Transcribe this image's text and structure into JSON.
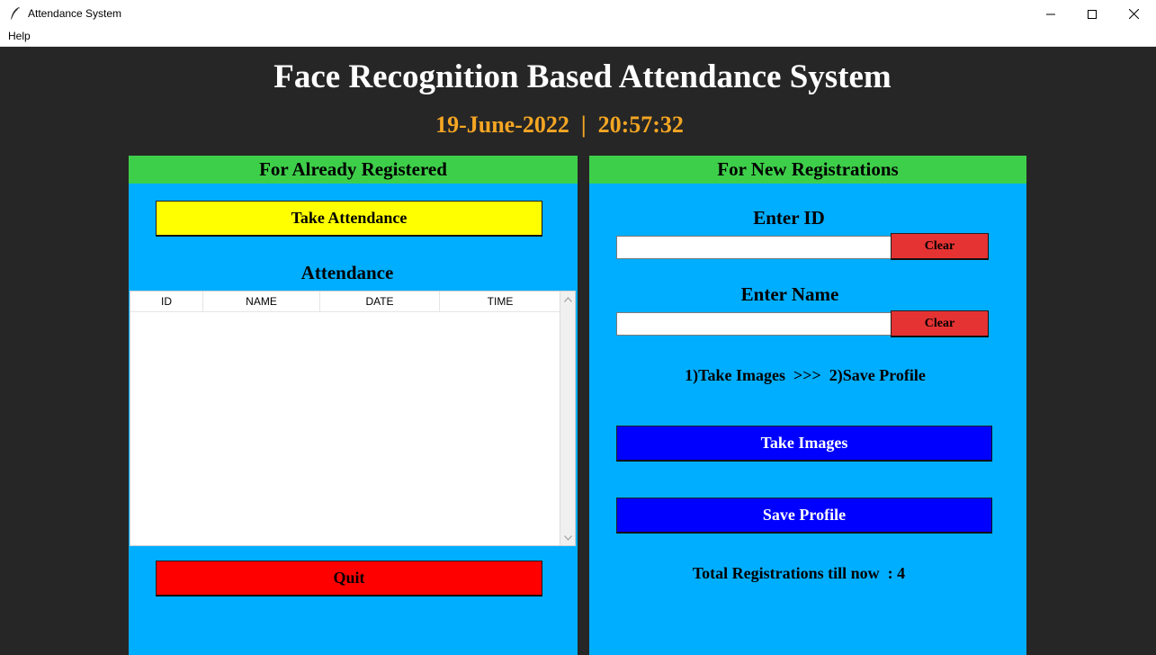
{
  "window": {
    "title": "Attendance System",
    "controls": [
      "minimize",
      "maximize",
      "close"
    ]
  },
  "menu": {
    "items": [
      "Help"
    ]
  },
  "header": {
    "title": "Face Recognition Based Attendance System",
    "date": "19-June-2022",
    "separator": "|",
    "time": "20:57:32"
  },
  "left_panel": {
    "heading": "For Already Registered",
    "take_attendance_label": "Take Attendance",
    "attendance_heading": "Attendance",
    "table": {
      "columns": [
        "ID",
        "NAME",
        "DATE",
        "TIME"
      ],
      "rows": []
    },
    "quit_label": "Quit"
  },
  "right_panel": {
    "heading": "For New Registrations",
    "id_label": "Enter ID",
    "id_value": "",
    "name_label": "Enter Name",
    "name_value": "",
    "clear_label": "Clear",
    "instructions": "1)Take Images  >>>  2)Save Profile",
    "take_images_label": "Take Images",
    "save_profile_label": "Save Profile",
    "total_registrations": "Total Registrations till now  : 4"
  },
  "colors": {
    "background": "#262626",
    "panel": "#00aeff",
    "panel_header": "#3ecf4a",
    "take_attendance": "#ffff00",
    "quit": "#ff0000",
    "clear": "#e53333",
    "primary_button": "#0000ff",
    "datetime": "#f5a623"
  },
  "icons": {
    "app": "feather-icon",
    "minimize": "minimize-icon",
    "maximize": "maximize-icon",
    "close": "close-icon"
  }
}
